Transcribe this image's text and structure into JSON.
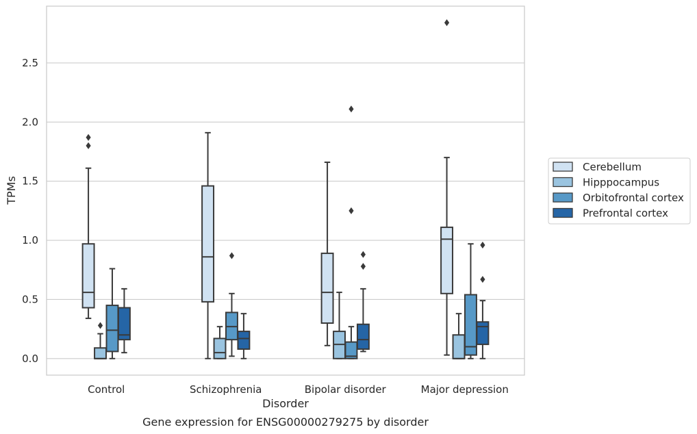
{
  "chart_data": {
    "type": "box",
    "title": "",
    "caption": "Gene expression for ENSG00000279275 by disorder",
    "xlabel": "Disorder",
    "ylabel": "TPMs",
    "ylim": [
      -0.14,
      2.98
    ],
    "yticks": [
      "0.0",
      "0.5",
      "1.0",
      "1.5",
      "2.0",
      "2.5"
    ],
    "grid": "horizontal",
    "legend_position": "right",
    "categories": [
      "Control",
      "Schizophrenia",
      "Bipolar disorder",
      "Major depression"
    ],
    "series": [
      {
        "name": "Cerebellum",
        "color": "#d0e2f2",
        "boxes": [
          {
            "whislo": 0.34,
            "q1": 0.43,
            "med": 0.56,
            "q3": 0.97,
            "whishi": 1.61,
            "fliers": [
              1.8,
              1.87
            ]
          },
          {
            "whislo": 0.0,
            "q1": 0.48,
            "med": 0.86,
            "q3": 1.46,
            "whishi": 1.91,
            "fliers": []
          },
          {
            "whislo": 0.11,
            "q1": 0.3,
            "med": 0.56,
            "q3": 0.89,
            "whishi": 1.66,
            "fliers": []
          },
          {
            "whislo": 0.03,
            "q1": 0.55,
            "med": 1.01,
            "q3": 1.11,
            "whishi": 1.7,
            "fliers": [
              2.84
            ]
          }
        ]
      },
      {
        "name": "Hipppocampus",
        "color": "#9ac4e0",
        "boxes": [
          {
            "whislo": 0.0,
            "q1": 0.0,
            "med": 0.0,
            "q3": 0.09,
            "whishi": 0.21,
            "fliers": [
              0.28
            ]
          },
          {
            "whislo": 0.0,
            "q1": 0.0,
            "med": 0.05,
            "q3": 0.17,
            "whishi": 0.27,
            "fliers": []
          },
          {
            "whislo": 0.0,
            "q1": 0.0,
            "med": 0.12,
            "q3": 0.23,
            "whishi": 0.56,
            "fliers": []
          },
          {
            "whislo": 0.0,
            "q1": 0.0,
            "med": 0.0,
            "q3": 0.2,
            "whishi": 0.38,
            "fliers": []
          }
        ]
      },
      {
        "name": "Orbitofrontal cortex",
        "color": "#5799c7",
        "boxes": [
          {
            "whislo": 0.0,
            "q1": 0.06,
            "med": 0.24,
            "q3": 0.45,
            "whishi": 0.76,
            "fliers": []
          },
          {
            "whislo": 0.02,
            "q1": 0.16,
            "med": 0.27,
            "q3": 0.39,
            "whishi": 0.55,
            "fliers": [
              0.87
            ]
          },
          {
            "whislo": 0.0,
            "q1": 0.0,
            "med": 0.02,
            "q3": 0.14,
            "whishi": 0.27,
            "fliers": [
              1.25,
              2.11
            ]
          },
          {
            "whislo": 0.0,
            "q1": 0.03,
            "med": 0.1,
            "q3": 0.54,
            "whishi": 0.97,
            "fliers": []
          }
        ]
      },
      {
        "name": "Prefrontal cortex",
        "color": "#2565a6",
        "boxes": [
          {
            "whislo": 0.05,
            "q1": 0.16,
            "med": 0.2,
            "q3": 0.43,
            "whishi": 0.59,
            "fliers": []
          },
          {
            "whislo": 0.0,
            "q1": 0.08,
            "med": 0.17,
            "q3": 0.23,
            "whishi": 0.38,
            "fliers": []
          },
          {
            "whislo": 0.06,
            "q1": 0.08,
            "med": 0.16,
            "q3": 0.29,
            "whishi": 0.59,
            "fliers": [
              0.78,
              0.88
            ]
          },
          {
            "whislo": 0.0,
            "q1": 0.12,
            "med": 0.27,
            "q3": 0.31,
            "whishi": 0.49,
            "fliers": [
              0.67,
              0.96
            ]
          }
        ]
      }
    ]
  }
}
